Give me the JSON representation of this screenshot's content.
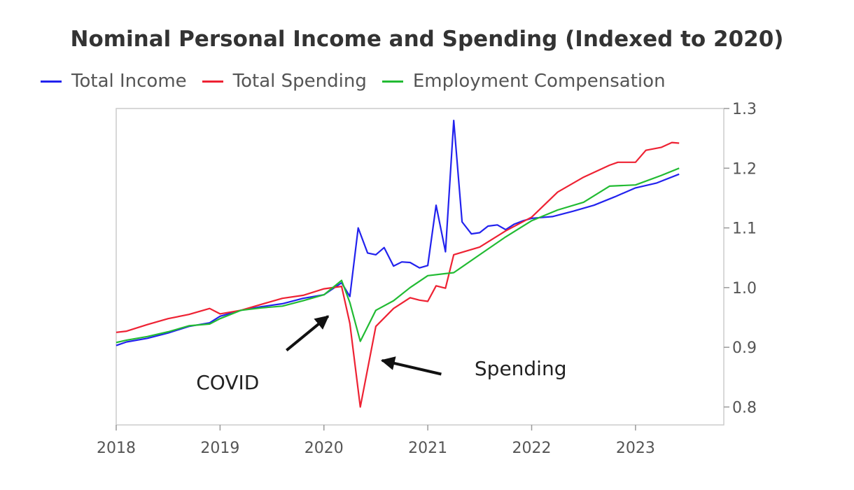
{
  "chart_data": {
    "type": "line",
    "title": "Nominal Personal Income and Spending (Indexed to 2020)",
    "xlabel": "",
    "ylabel": "",
    "xlim": [
      2018,
      2023.85
    ],
    "ylim": [
      0.77,
      1.3
    ],
    "x_ticks": [
      2018,
      2019,
      2020,
      2021,
      2022,
      2023
    ],
    "x_tick_labels": [
      "2018",
      "2019",
      "2020",
      "2021",
      "2022",
      "2023"
    ],
    "y_ticks": [
      0.8,
      0.9,
      1.0,
      1.1,
      1.2,
      1.3
    ],
    "y_tick_labels": [
      "0.8",
      "0.9",
      "1.0",
      "1.1",
      "1.2",
      "1.3"
    ],
    "y_axis_side": "right",
    "grid": false,
    "legend_position": "top",
    "series": [
      {
        "name": "Total Income",
        "color": "#2222ee",
        "points": [
          [
            2018.0,
            0.903
          ],
          [
            2018.1,
            0.909
          ],
          [
            2018.3,
            0.915
          ],
          [
            2018.5,
            0.924
          ],
          [
            2018.7,
            0.935
          ],
          [
            2018.9,
            0.941
          ],
          [
            2019.0,
            0.952
          ],
          [
            2019.2,
            0.962
          ],
          [
            2019.4,
            0.968
          ],
          [
            2019.6,
            0.973
          ],
          [
            2019.8,
            0.982
          ],
          [
            2020.0,
            0.988
          ],
          [
            2020.17,
            1.008
          ],
          [
            2020.25,
            0.985
          ],
          [
            2020.33,
            1.1
          ],
          [
            2020.42,
            1.058
          ],
          [
            2020.5,
            1.055
          ],
          [
            2020.58,
            1.067
          ],
          [
            2020.67,
            1.036
          ],
          [
            2020.75,
            1.043
          ],
          [
            2020.83,
            1.042
          ],
          [
            2020.92,
            1.033
          ],
          [
            2021.0,
            1.037
          ],
          [
            2021.08,
            1.138
          ],
          [
            2021.17,
            1.06
          ],
          [
            2021.25,
            1.28
          ],
          [
            2021.33,
            1.11
          ],
          [
            2021.42,
            1.09
          ],
          [
            2021.5,
            1.092
          ],
          [
            2021.58,
            1.103
          ],
          [
            2021.67,
            1.105
          ],
          [
            2021.75,
            1.097
          ],
          [
            2021.83,
            1.106
          ],
          [
            2021.92,
            1.112
          ],
          [
            2022.0,
            1.116
          ],
          [
            2022.2,
            1.119
          ],
          [
            2022.4,
            1.128
          ],
          [
            2022.6,
            1.138
          ],
          [
            2022.8,
            1.152
          ],
          [
            2023.0,
            1.167
          ],
          [
            2023.2,
            1.175
          ],
          [
            2023.42,
            1.19
          ]
        ]
      },
      {
        "name": "Total Spending",
        "color": "#ee2233",
        "points": [
          [
            2018.0,
            0.925
          ],
          [
            2018.1,
            0.927
          ],
          [
            2018.3,
            0.938
          ],
          [
            2018.5,
            0.948
          ],
          [
            2018.7,
            0.955
          ],
          [
            2018.9,
            0.965
          ],
          [
            2019.0,
            0.956
          ],
          [
            2019.2,
            0.962
          ],
          [
            2019.4,
            0.972
          ],
          [
            2019.6,
            0.982
          ],
          [
            2019.8,
            0.987
          ],
          [
            2020.0,
            0.998
          ],
          [
            2020.17,
            1.002
          ],
          [
            2020.25,
            0.94
          ],
          [
            2020.35,
            0.8
          ],
          [
            2020.5,
            0.935
          ],
          [
            2020.67,
            0.965
          ],
          [
            2020.83,
            0.983
          ],
          [
            2020.92,
            0.979
          ],
          [
            2021.0,
            0.977
          ],
          [
            2021.08,
            1.003
          ],
          [
            2021.17,
            0.999
          ],
          [
            2021.25,
            1.055
          ],
          [
            2021.5,
            1.068
          ],
          [
            2021.75,
            1.095
          ],
          [
            2022.0,
            1.118
          ],
          [
            2022.25,
            1.16
          ],
          [
            2022.5,
            1.185
          ],
          [
            2022.75,
            1.205
          ],
          [
            2022.83,
            1.21
          ],
          [
            2023.0,
            1.21
          ],
          [
            2023.1,
            1.23
          ],
          [
            2023.25,
            1.235
          ],
          [
            2023.35,
            1.243
          ],
          [
            2023.42,
            1.242
          ]
        ]
      },
      {
        "name": "Employment Compensation",
        "color": "#22bb33",
        "points": [
          [
            2018.0,
            0.908
          ],
          [
            2018.1,
            0.912
          ],
          [
            2018.3,
            0.918
          ],
          [
            2018.5,
            0.926
          ],
          [
            2018.7,
            0.936
          ],
          [
            2018.9,
            0.939
          ],
          [
            2019.0,
            0.948
          ],
          [
            2019.2,
            0.962
          ],
          [
            2019.4,
            0.966
          ],
          [
            2019.6,
            0.969
          ],
          [
            2019.8,
            0.978
          ],
          [
            2020.0,
            0.988
          ],
          [
            2020.17,
            1.012
          ],
          [
            2020.25,
            0.975
          ],
          [
            2020.35,
            0.91
          ],
          [
            2020.5,
            0.962
          ],
          [
            2020.67,
            0.978
          ],
          [
            2020.83,
            1.0
          ],
          [
            2021.0,
            1.02
          ],
          [
            2021.25,
            1.025
          ],
          [
            2021.5,
            1.055
          ],
          [
            2021.75,
            1.085
          ],
          [
            2022.0,
            1.112
          ],
          [
            2022.25,
            1.13
          ],
          [
            2022.5,
            1.143
          ],
          [
            2022.75,
            1.17
          ],
          [
            2023.0,
            1.172
          ],
          [
            2023.25,
            1.188
          ],
          [
            2023.42,
            1.2
          ]
        ]
      }
    ],
    "annotations": [
      {
        "text": "COVID",
        "label_at": [
          2018.77,
          0.83
        ],
        "arrow_from": [
          2019.64,
          0.895
        ],
        "arrow_to": [
          2020.04,
          0.952
        ]
      },
      {
        "text": "Spending",
        "label_at": [
          2021.45,
          0.853
        ],
        "arrow_from": [
          2021.13,
          0.855
        ],
        "arrow_to": [
          2020.56,
          0.878
        ]
      }
    ]
  }
}
